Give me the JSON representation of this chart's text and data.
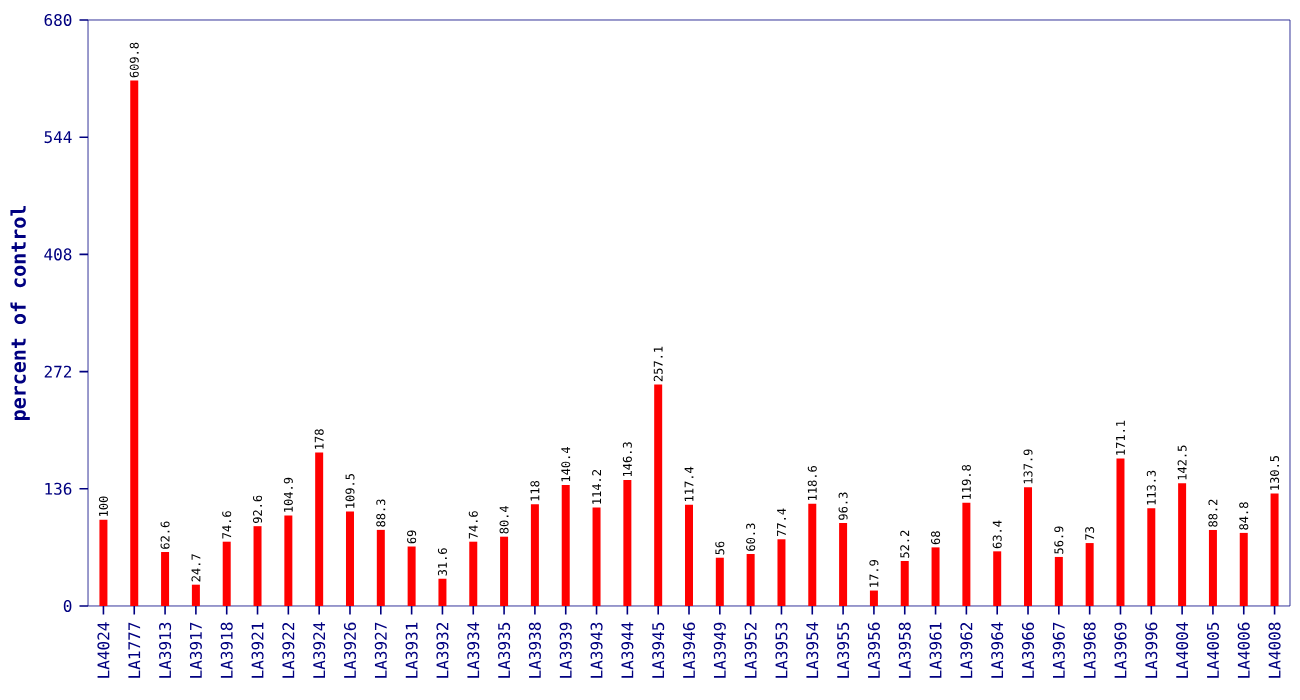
{
  "chart_data": {
    "type": "bar",
    "ylabel": "percent of control",
    "categories": [
      "LA4024",
      "LA1777",
      "LA3913",
      "LA3917",
      "LA3918",
      "LA3921",
      "LA3922",
      "LA3924",
      "LA3926",
      "LA3927",
      "LA3931",
      "LA3932",
      "LA3934",
      "LA3935",
      "LA3938",
      "LA3939",
      "LA3943",
      "LA3944",
      "LA3945",
      "LA3946",
      "LA3949",
      "LA3952",
      "LA3953",
      "LA3954",
      "LA3955",
      "LA3956",
      "LA3958",
      "LA3961",
      "LA3962",
      "LA3964",
      "LA3966",
      "LA3967",
      "LA3968",
      "LA3969",
      "LA3996",
      "LA4004",
      "LA4005",
      "LA4006",
      "LA4008"
    ],
    "values": [
      100,
      609.8,
      62.6,
      24.7,
      74.6,
      92.6,
      104.9,
      178,
      109.5,
      88.3,
      69,
      31.6,
      74.6,
      80.4,
      118,
      140.4,
      114.2,
      146.3,
      257.1,
      117.4,
      56,
      60.3,
      77.4,
      118.6,
      96.3,
      17.9,
      52.2,
      68,
      119.8,
      63.4,
      137.9,
      56.9,
      73,
      171.1,
      113.3,
      142.5,
      88.2,
      84.8,
      130.5
    ],
    "color": "#ff0000",
    "ylim": [
      0,
      680
    ],
    "yticks": [
      0,
      136,
      272,
      408,
      544,
      680
    ],
    "data_labels": true,
    "grid": false
  }
}
